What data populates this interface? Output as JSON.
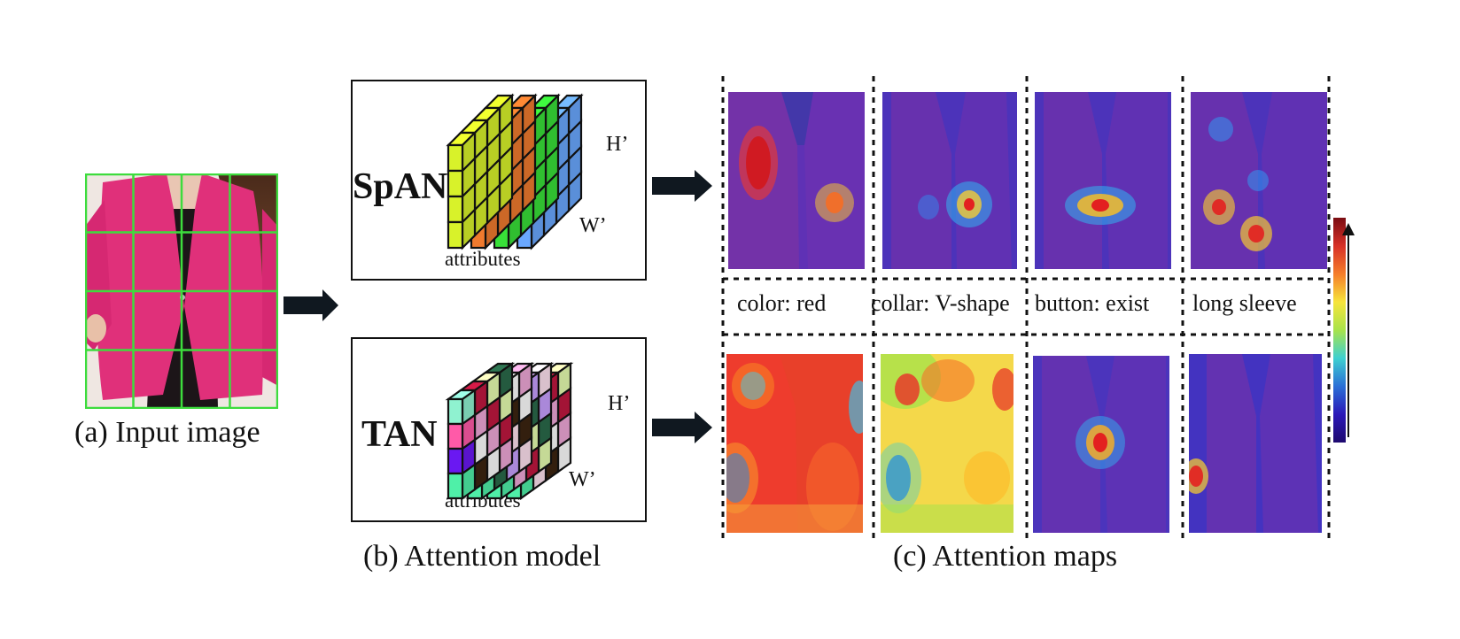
{
  "captions": {
    "input": "(a) Input image",
    "model": "(b)  Attention model",
    "maps": "(c) Attention maps"
  },
  "models": {
    "spatial": {
      "name": "SpAN",
      "height_label": "H’",
      "width_label": "W’",
      "attributes_label": "attributes"
    },
    "task": {
      "name": "TAN",
      "height_label": "H’",
      "width_label": "W’",
      "attributes_label": "attributes"
    }
  },
  "attribute_labels": [
    "color: red",
    "collar: V-shape",
    "button: exist",
    "long sleeve"
  ],
  "colors": {
    "jacket": "#e0307a",
    "grid": "#3ddc3d",
    "arrow": "#101820",
    "overlay_blue": "#3c36c8",
    "colorbar": [
      "#7a0c12",
      "#d73027",
      "#f57d2a",
      "#f7e43b",
      "#a8e34a",
      "#3ed0d0",
      "#2a6fd6",
      "#2b18b8",
      "#1e0a6e"
    ]
  },
  "spatial_slice_colors": [
    "#d8f22a",
    "#f07a2e",
    "#38e038",
    "#6aa8ff"
  ],
  "task_front_colors": [
    "#8ff2d0",
    "#ff5aa8",
    "#6a18f2",
    "#4ff0a8"
  ]
}
